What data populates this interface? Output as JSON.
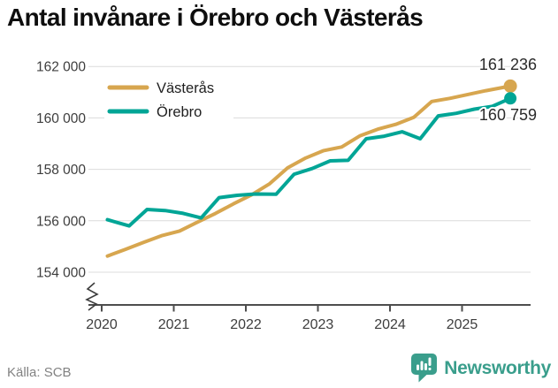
{
  "title": "Antal invånare i Örebro och Västerås",
  "source_caption": "Källa: SCB",
  "brand": {
    "name": "Newsworthy",
    "color": "#3A9E8C"
  },
  "chart_data": {
    "type": "line",
    "title": "Antal invånare i Örebro och Västerås",
    "xlabel": "",
    "ylabel": "",
    "x_tick_labels": [
      "2020",
      "2021",
      "2022",
      "2023",
      "2024",
      "2025"
    ],
    "x_tick_years": [
      2020,
      2021,
      2022,
      2023,
      2024,
      2025
    ],
    "y_tick_labels": [
      "162 000",
      "160 000",
      "158 000",
      "156 000",
      "154 000"
    ],
    "y_tick_values": [
      162000,
      160000,
      158000,
      156000,
      154000
    ],
    "ylim": [
      154000,
      162000
    ],
    "xlim": [
      2020,
      2026
    ],
    "grid": true,
    "axis_break": true,
    "legend_position": "top-left",
    "colors": {
      "grid": "#dcdcdc",
      "axis": "#4d4d4d",
      "tick_text": "#3d3d3d"
    },
    "series": [
      {
        "name": "Västerås",
        "color": "#D7A64F",
        "end_label": "161 236",
        "end_value": 161236,
        "points": [
          [
            2020.08,
            154630
          ],
          [
            2020.33,
            154890
          ],
          [
            2020.58,
            155160
          ],
          [
            2020.83,
            155420
          ],
          [
            2021.08,
            155600
          ],
          [
            2021.33,
            155950
          ],
          [
            2021.58,
            156290
          ],
          [
            2021.83,
            156660
          ],
          [
            2022.08,
            157010
          ],
          [
            2022.33,
            157440
          ],
          [
            2022.58,
            158060
          ],
          [
            2022.83,
            158440
          ],
          [
            2023.08,
            158730
          ],
          [
            2023.33,
            158870
          ],
          [
            2023.58,
            159300
          ],
          [
            2023.83,
            159560
          ],
          [
            2024.08,
            159750
          ],
          [
            2024.33,
            160020
          ],
          [
            2024.58,
            160640
          ],
          [
            2024.83,
            160760
          ],
          [
            2025.08,
            160910
          ],
          [
            2025.33,
            161060
          ],
          [
            2025.67,
            161236
          ]
        ]
      },
      {
        "name": "Örebro",
        "color": "#00A596",
        "end_label": "160 759",
        "end_value": 160759,
        "points": [
          [
            2020.08,
            156040
          ],
          [
            2020.38,
            155800
          ],
          [
            2020.63,
            156440
          ],
          [
            2020.88,
            156400
          ],
          [
            2021.13,
            156290
          ],
          [
            2021.38,
            156110
          ],
          [
            2021.63,
            156900
          ],
          [
            2021.88,
            156990
          ],
          [
            2022.13,
            157040
          ],
          [
            2022.42,
            157030
          ],
          [
            2022.67,
            157810
          ],
          [
            2022.92,
            158030
          ],
          [
            2023.17,
            158330
          ],
          [
            2023.42,
            158350
          ],
          [
            2023.67,
            159190
          ],
          [
            2023.92,
            159290
          ],
          [
            2024.17,
            159460
          ],
          [
            2024.42,
            159190
          ],
          [
            2024.67,
            160080
          ],
          [
            2024.92,
            160180
          ],
          [
            2025.17,
            160340
          ],
          [
            2025.42,
            160450
          ],
          [
            2025.67,
            160759
          ]
        ]
      }
    ]
  }
}
